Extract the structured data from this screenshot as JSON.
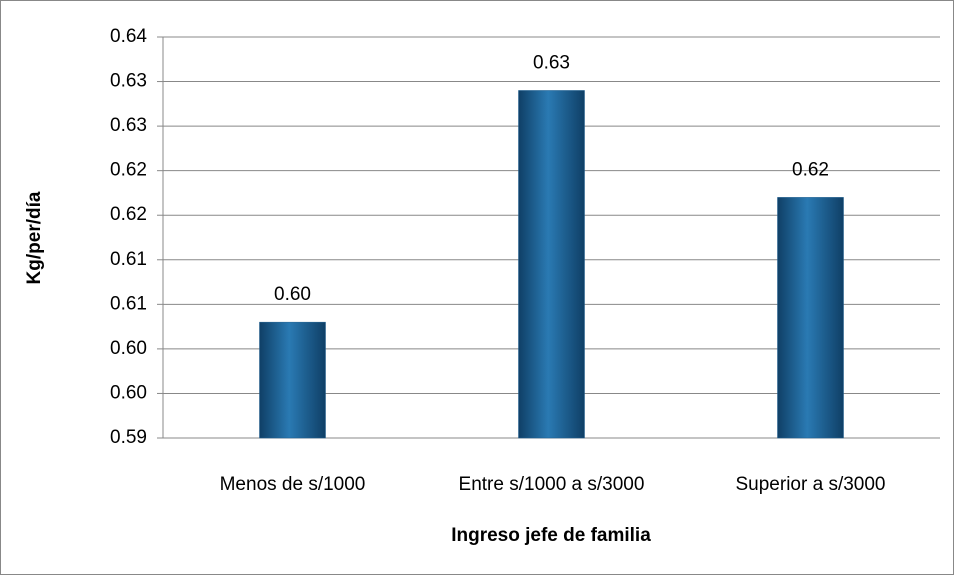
{
  "chart_data": {
    "type": "bar",
    "x_label": "Ingreso jefe de familia",
    "y_label": "Kg/per/día",
    "categories": [
      "Menos de s/1000",
      "Entre s/1000 a s/3000",
      "Superior a s/3000"
    ],
    "values": [
      0.603,
      0.629,
      0.617
    ],
    "value_labels": [
      "0.60",
      "0.63",
      "0.62"
    ],
    "color": "#1f5f8f",
    "ylim": [
      0.59,
      0.635
    ],
    "yticks": [
      0.59,
      {
        "value": 0.595,
        "label": "0.60"
      },
      {
        "value": 0.6,
        "label": "0.60"
      },
      {
        "value": 0.605,
        "label": "0.61"
      },
      0.61,
      {
        "value": 0.615,
        "label": "0.62"
      },
      0.62,
      {
        "value": 0.625,
        "label": "0.63"
      },
      0.63,
      {
        "value": 0.635,
        "label": "0.64"
      }
    ],
    "grid": true
  }
}
